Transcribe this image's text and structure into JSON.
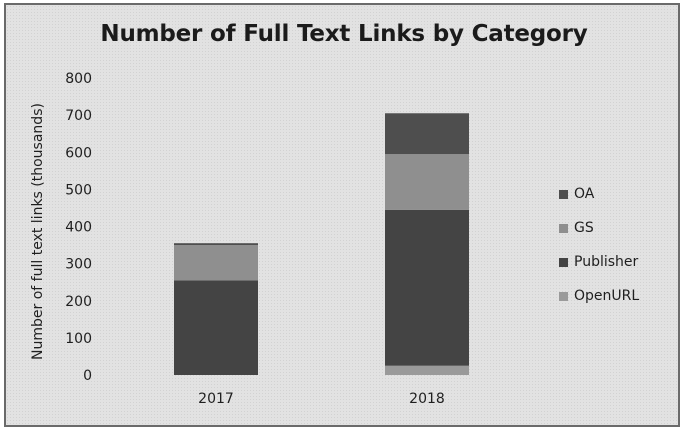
{
  "chart_data": {
    "type": "bar",
    "stacked": true,
    "title": "Number of Full Text Links by Category",
    "xlabel": "",
    "ylabel": "Number of full text links (thousands)",
    "ylim": [
      0,
      800
    ],
    "yticks": [
      0,
      100,
      200,
      300,
      400,
      500,
      600,
      700,
      800
    ],
    "grid": false,
    "legend_position": "right",
    "categories": [
      "2017",
      "2018"
    ],
    "series": [
      {
        "name": "OpenURL",
        "color": "#9a9a9a",
        "values": [
          0,
          25
        ]
      },
      {
        "name": "Publisher",
        "color": "#444444",
        "values": [
          255,
          420
        ]
      },
      {
        "name": "GS",
        "color": "#8f8f8f",
        "values": [
          95,
          150
        ]
      },
      {
        "name": "OA",
        "color": "#4e4e4e",
        "values": [
          5,
          110
        ]
      }
    ],
    "legend_order": [
      "OA",
      "GS",
      "Publisher",
      "OpenURL"
    ]
  }
}
